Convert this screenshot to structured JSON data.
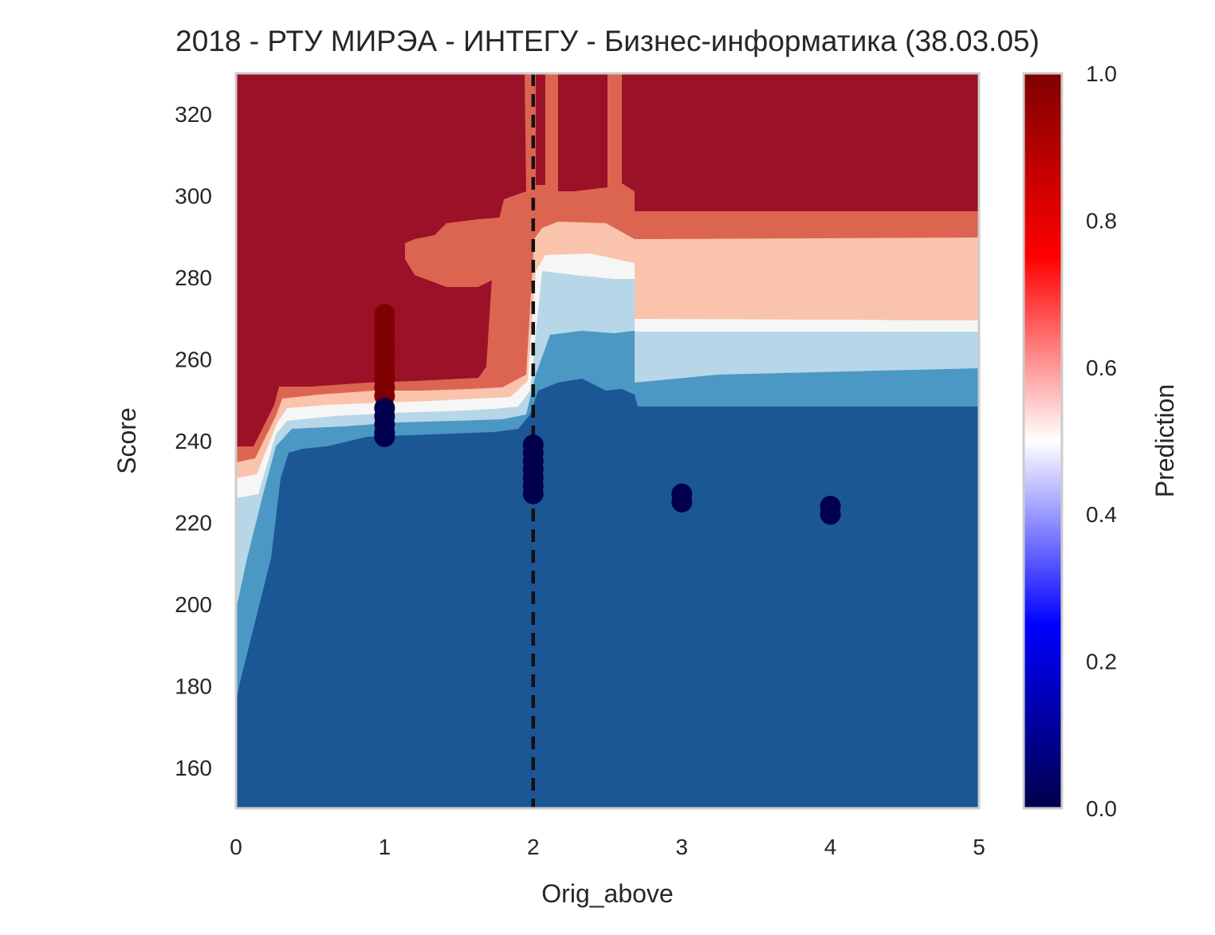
{
  "chart_data": {
    "type": "heatmap",
    "title": "2018 - РТУ МИРЭА - ИНТЕГУ - Бизнес-информатика (38.03.05)",
    "xlabel": "Orig_above",
    "ylabel": "Score",
    "xlim": [
      0,
      5
    ],
    "ylim": [
      150,
      330
    ],
    "x_ticks": [
      "0",
      "1",
      "2",
      "3",
      "4",
      "5"
    ],
    "y_ticks": [
      "160",
      "180",
      "200",
      "220",
      "240",
      "260",
      "280",
      "300",
      "320"
    ],
    "grid": false,
    "colorbar": {
      "label": "Prediction",
      "range": [
        0,
        1
      ],
      "ticks": [
        "0.0",
        "0.2",
        "0.4",
        "0.6",
        "0.8",
        "1.0"
      ],
      "colormap": "seismic"
    },
    "contour_level_colors": [
      "#1b5695",
      "#4b98c4",
      "#b7d6e8",
      "#f6f6f6",
      "#f9c4ab",
      "#dc6552",
      "#9b1127"
    ],
    "reference_line": {
      "x": 2,
      "style": "dashed",
      "color": "#111111"
    },
    "points": [
      {
        "x": 1,
        "y": 271,
        "pred": 1
      },
      {
        "x": 1,
        "y": 269,
        "pred": 1
      },
      {
        "x": 1,
        "y": 267,
        "pred": 1
      },
      {
        "x": 1,
        "y": 265,
        "pred": 1
      },
      {
        "x": 1,
        "y": 263,
        "pred": 1
      },
      {
        "x": 1,
        "y": 261,
        "pred": 1
      },
      {
        "x": 1,
        "y": 259,
        "pred": 1
      },
      {
        "x": 1,
        "y": 257,
        "pred": 1
      },
      {
        "x": 1,
        "y": 255,
        "pred": 1
      },
      {
        "x": 1,
        "y": 253,
        "pred": 1
      },
      {
        "x": 1,
        "y": 251,
        "pred": 1
      },
      {
        "x": 1,
        "y": 248,
        "pred": 0
      },
      {
        "x": 1,
        "y": 246,
        "pred": 0
      },
      {
        "x": 1,
        "y": 244,
        "pred": 0
      },
      {
        "x": 1,
        "y": 242,
        "pred": 0
      },
      {
        "x": 1,
        "y": 241,
        "pred": 0
      },
      {
        "x": 2,
        "y": 239,
        "pred": 0
      },
      {
        "x": 2,
        "y": 237,
        "pred": 0
      },
      {
        "x": 2,
        "y": 235,
        "pred": 0
      },
      {
        "x": 2,
        "y": 233,
        "pred": 0
      },
      {
        "x": 2,
        "y": 231,
        "pred": 0
      },
      {
        "x": 2,
        "y": 229,
        "pred": 0
      },
      {
        "x": 2,
        "y": 227,
        "pred": 0
      },
      {
        "x": 3,
        "y": 227,
        "pred": 0
      },
      {
        "x": 3,
        "y": 225,
        "pred": 0
      },
      {
        "x": 4,
        "y": 224,
        "pred": 0
      },
      {
        "x": 4,
        "y": 222,
        "pred": 0
      }
    ]
  }
}
